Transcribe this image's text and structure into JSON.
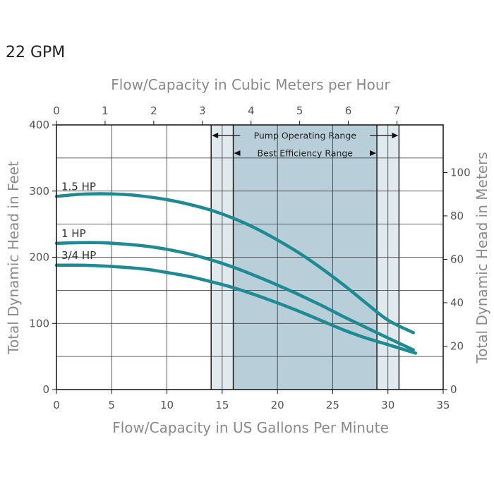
{
  "title": "22 GPM",
  "chart_data": {
    "type": "line",
    "title": "22 GPM",
    "xlabel": "Flow/Capacity in US Gallons Per Minute",
    "ylabel": "Total Dynamic Head in Feet",
    "x2label": "Flow/Capacity in Cubic Meters per Hour",
    "y2label": "Total Dynamic Head in Meters",
    "xlim": [
      0,
      35
    ],
    "ylim": [
      0,
      400
    ],
    "x2lim": [
      0,
      7.95
    ],
    "y2lim": [
      0,
      121.92
    ],
    "xticks": [
      0,
      5,
      10,
      15,
      20,
      25,
      30,
      35
    ],
    "yticks": [
      0,
      100,
      200,
      300,
      400
    ],
    "x2ticks": [
      0,
      1,
      2,
      3,
      4,
      5,
      6,
      7
    ],
    "y2ticks": [
      0,
      20,
      40,
      60,
      80,
      100
    ],
    "grid": true,
    "ranges": [
      {
        "name": "Pump Operating Range",
        "x": [
          14,
          31
        ],
        "color": "#dfe9ee"
      },
      {
        "name": "Best Efficiency Range",
        "x": [
          16,
          29
        ],
        "color": "#b8ced8"
      }
    ],
    "series_color": "#1e8a93",
    "series": [
      {
        "name": "1.5 HP",
        "x": [
          0,
          2,
          4,
          6,
          8,
          10,
          12,
          14,
          16,
          18,
          20,
          22,
          24,
          26,
          28,
          30,
          32.3
        ],
        "y": [
          292,
          295,
          296,
          295,
          292,
          287,
          280,
          271,
          259,
          244,
          226,
          206,
          183,
          158,
          131,
          105,
          86
        ]
      },
      {
        "name": "1 HP",
        "x": [
          0,
          2,
          4,
          6,
          8,
          10,
          12,
          14,
          16,
          18,
          20,
          22,
          24,
          26,
          28,
          30,
          32.3
        ],
        "y": [
          221,
          222,
          222,
          220,
          217,
          212,
          205,
          196,
          185,
          172,
          158,
          143,
          127,
          110,
          94,
          78,
          60
        ]
      },
      {
        "name": "3/4 HP",
        "x": [
          0,
          2,
          4,
          6,
          8,
          10,
          12,
          14,
          16,
          18,
          20,
          22,
          24,
          26,
          28,
          30,
          32.5
        ],
        "y": [
          188,
          188,
          187,
          185,
          182,
          177,
          171,
          163,
          154,
          143,
          131,
          118,
          104,
          90,
          78,
          68,
          55
        ]
      }
    ]
  }
}
